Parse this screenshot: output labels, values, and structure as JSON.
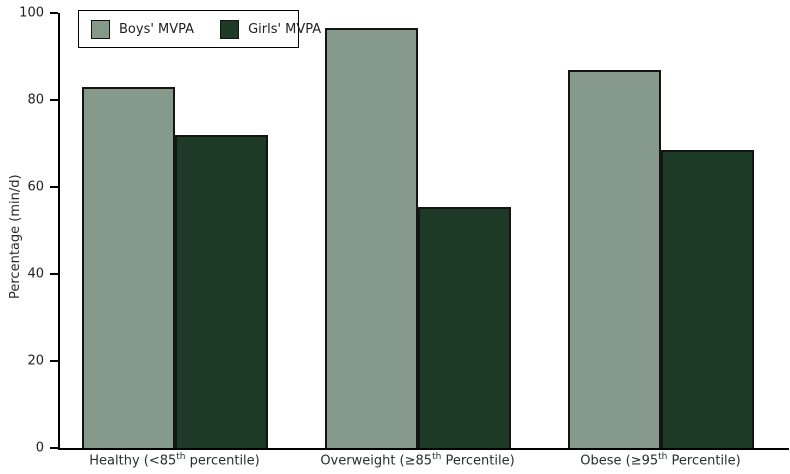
{
  "figure": {
    "background": "#ffffff",
    "text_color": "#222222",
    "axis_color": "#000000",
    "bar_border_color": "#141414"
  },
  "chart_data": {
    "type": "bar",
    "title": "",
    "xlabel": "",
    "ylabel": "Percentage (min/d)",
    "ylim": [
      0,
      100
    ],
    "yticks": [
      0,
      20,
      40,
      60,
      80,
      100
    ],
    "grid": false,
    "legend_position": "top-left",
    "categories": [
      "Healthy (<85th percentile)",
      "Overweight (≥85th Percentile)",
      "Obese (≥95th Percentile)"
    ],
    "category_label_parts": [
      {
        "pre": "Healthy (<85",
        "sup": "th",
        "post": " percentile)"
      },
      {
        "pre": "Overweight (≥85",
        "sup": "th",
        "post": " Percentile)"
      },
      {
        "pre": "Obese (≥95",
        "sup": "th",
        "post": " Percentile)"
      }
    ],
    "series": [
      {
        "name": "Boys' MVPA",
        "color": "#869a8b",
        "values": [
          83,
          96.5,
          87
        ]
      },
      {
        "name": "Girls' MVPA",
        "color": "#1d3a26",
        "values": [
          72,
          55.5,
          68.5
        ]
      }
    ]
  }
}
